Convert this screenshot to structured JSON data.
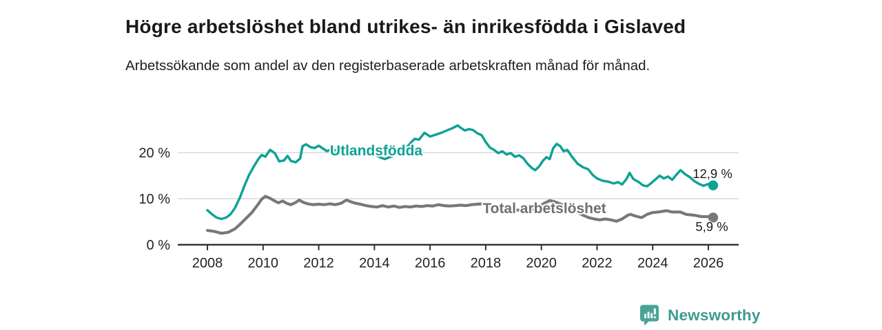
{
  "header": {
    "title": "Högre arbetslöshet bland utrikes- än inrikesfödda i Gislaved",
    "subtitle": "Arbetssökande som andel av den registerbaserade arbetskraften månad för månad."
  },
  "footer": {
    "brand": "Newsworthy"
  },
  "colors": {
    "accent_teal": "#0fa296",
    "series_gray": "#787878",
    "grid": "#d9d9d9",
    "axis": "#333333",
    "text_dark": "#1a1a1a",
    "logo_teal": "#4aa396"
  },
  "chart_data": {
    "type": "line",
    "title": "Högre arbetslöshet bland utrikes- än inrikesfödda i Gislaved",
    "subtitle": "Arbetssökande som andel av den registerbaserade arbetskraften månad för månad.",
    "unit": "%",
    "grid": "horizontal",
    "legend_position": "inline-labels",
    "x_axis": {
      "min": 2006.94,
      "max": 2027.09,
      "ticks": [
        2008,
        2010,
        2012,
        2014,
        2016,
        2018,
        2020,
        2022,
        2024,
        2026
      ]
    },
    "y_axis": {
      "min": 0,
      "max": 27,
      "ticks": [
        0,
        10,
        20
      ],
      "tick_labels": [
        "0 %",
        "10 %",
        "20 %"
      ]
    },
    "series": [
      {
        "name": "Utlandsfödda",
        "color": "#0fa296",
        "end_label": "12,9 %",
        "end_value": 12.9,
        "points": [
          [
            2008.0,
            7.5
          ],
          [
            2008.17,
            6.6
          ],
          [
            2008.33,
            5.9
          ],
          [
            2008.5,
            5.6
          ],
          [
            2008.67,
            5.9
          ],
          [
            2008.83,
            6.6
          ],
          [
            2009.0,
            8.1
          ],
          [
            2009.17,
            10.3
          ],
          [
            2009.33,
            12.8
          ],
          [
            2009.5,
            15.2
          ],
          [
            2009.67,
            17.0
          ],
          [
            2009.83,
            18.6
          ],
          [
            2009.95,
            19.5
          ],
          [
            2010.08,
            19.1
          ],
          [
            2010.25,
            20.6
          ],
          [
            2010.42,
            19.9
          ],
          [
            2010.58,
            18.1
          ],
          [
            2010.75,
            18.3
          ],
          [
            2010.88,
            19.3
          ],
          [
            2011.0,
            18.2
          ],
          [
            2011.17,
            17.9
          ],
          [
            2011.33,
            18.7
          ],
          [
            2011.42,
            21.4
          ],
          [
            2011.55,
            21.8
          ],
          [
            2011.7,
            21.2
          ],
          [
            2011.85,
            21.0
          ],
          [
            2012.0,
            21.5
          ],
          [
            2012.15,
            20.9
          ],
          [
            2012.3,
            20.3
          ],
          [
            2012.45,
            20.8
          ],
          [
            2012.6,
            20.5
          ],
          [
            2012.8,
            20.7
          ],
          [
            2013.0,
            21.0
          ],
          [
            2013.25,
            20.7
          ],
          [
            2013.5,
            20.4
          ],
          [
            2013.75,
            20.2
          ],
          [
            2014.0,
            19.7
          ],
          [
            2014.2,
            19.0
          ],
          [
            2014.37,
            18.6
          ],
          [
            2014.55,
            19.0
          ],
          [
            2014.75,
            19.6
          ],
          [
            2014.95,
            20.2
          ],
          [
            2015.15,
            21.0
          ],
          [
            2015.3,
            22.1
          ],
          [
            2015.45,
            23.0
          ],
          [
            2015.6,
            22.8
          ],
          [
            2015.8,
            24.3
          ],
          [
            2016.0,
            23.5
          ],
          [
            2016.2,
            23.9
          ],
          [
            2016.4,
            24.3
          ],
          [
            2016.6,
            24.8
          ],
          [
            2016.8,
            25.3
          ],
          [
            2017.0,
            25.9
          ],
          [
            2017.1,
            25.4
          ],
          [
            2017.25,
            24.8
          ],
          [
            2017.4,
            25.1
          ],
          [
            2017.55,
            24.9
          ],
          [
            2017.7,
            24.2
          ],
          [
            2017.85,
            23.8
          ],
          [
            2018.0,
            22.3
          ],
          [
            2018.15,
            21.1
          ],
          [
            2018.3,
            20.6
          ],
          [
            2018.45,
            19.9
          ],
          [
            2018.6,
            20.3
          ],
          [
            2018.75,
            19.6
          ],
          [
            2018.9,
            19.9
          ],
          [
            2019.05,
            19.1
          ],
          [
            2019.2,
            19.4
          ],
          [
            2019.35,
            18.8
          ],
          [
            2019.5,
            17.6
          ],
          [
            2019.65,
            16.7
          ],
          [
            2019.78,
            16.2
          ],
          [
            2019.92,
            17.0
          ],
          [
            2020.05,
            18.2
          ],
          [
            2020.18,
            19.0
          ],
          [
            2020.3,
            18.6
          ],
          [
            2020.42,
            20.9
          ],
          [
            2020.55,
            21.9
          ],
          [
            2020.68,
            21.4
          ],
          [
            2020.8,
            20.3
          ],
          [
            2020.93,
            20.6
          ],
          [
            2021.1,
            19.1
          ],
          [
            2021.3,
            17.6
          ],
          [
            2021.5,
            16.8
          ],
          [
            2021.68,
            16.4
          ],
          [
            2021.85,
            15.1
          ],
          [
            2022.0,
            14.4
          ],
          [
            2022.2,
            13.9
          ],
          [
            2022.4,
            13.7
          ],
          [
            2022.6,
            13.3
          ],
          [
            2022.75,
            13.6
          ],
          [
            2022.9,
            13.1
          ],
          [
            2023.05,
            14.2
          ],
          [
            2023.17,
            15.6
          ],
          [
            2023.3,
            14.3
          ],
          [
            2023.5,
            13.6
          ],
          [
            2023.65,
            12.9
          ],
          [
            2023.8,
            12.7
          ],
          [
            2023.95,
            13.4
          ],
          [
            2024.1,
            14.2
          ],
          [
            2024.25,
            15.0
          ],
          [
            2024.4,
            14.4
          ],
          [
            2024.55,
            14.8
          ],
          [
            2024.7,
            14.1
          ],
          [
            2024.85,
            15.2
          ],
          [
            2025.0,
            16.2
          ],
          [
            2025.17,
            15.3
          ],
          [
            2025.33,
            14.7
          ],
          [
            2025.5,
            13.8
          ],
          [
            2025.67,
            13.2
          ],
          [
            2025.83,
            12.8
          ],
          [
            2026.0,
            13.2
          ],
          [
            2026.17,
            12.9
          ]
        ]
      },
      {
        "name": "Total arbetslöshet",
        "color": "#787878",
        "end_label": "5,9 %",
        "end_value": 5.9,
        "points": [
          [
            2008.0,
            3.1
          ],
          [
            2008.25,
            2.9
          ],
          [
            2008.5,
            2.5
          ],
          [
            2008.75,
            2.7
          ],
          [
            2009.0,
            3.5
          ],
          [
            2009.2,
            4.6
          ],
          [
            2009.4,
            5.8
          ],
          [
            2009.6,
            7.0
          ],
          [
            2009.8,
            8.6
          ],
          [
            2009.95,
            9.9
          ],
          [
            2010.08,
            10.5
          ],
          [
            2010.25,
            10.1
          ],
          [
            2010.42,
            9.5
          ],
          [
            2010.55,
            9.1
          ],
          [
            2010.7,
            9.5
          ],
          [
            2010.85,
            9.0
          ],
          [
            2011.0,
            8.7
          ],
          [
            2011.15,
            9.1
          ],
          [
            2011.3,
            9.7
          ],
          [
            2011.45,
            9.2
          ],
          [
            2011.6,
            8.9
          ],
          [
            2011.8,
            8.7
          ],
          [
            2012.0,
            8.8
          ],
          [
            2012.2,
            8.7
          ],
          [
            2012.4,
            8.9
          ],
          [
            2012.6,
            8.7
          ],
          [
            2012.8,
            9.0
          ],
          [
            2013.0,
            9.7
          ],
          [
            2013.17,
            9.3
          ],
          [
            2013.33,
            9.0
          ],
          [
            2013.5,
            8.8
          ],
          [
            2013.7,
            8.5
          ],
          [
            2013.9,
            8.3
          ],
          [
            2014.1,
            8.2
          ],
          [
            2014.3,
            8.5
          ],
          [
            2014.5,
            8.2
          ],
          [
            2014.7,
            8.4
          ],
          [
            2014.9,
            8.1
          ],
          [
            2015.1,
            8.3
          ],
          [
            2015.3,
            8.2
          ],
          [
            2015.5,
            8.4
          ],
          [
            2015.7,
            8.3
          ],
          [
            2015.9,
            8.5
          ],
          [
            2016.1,
            8.4
          ],
          [
            2016.3,
            8.7
          ],
          [
            2016.5,
            8.5
          ],
          [
            2016.7,
            8.4
          ],
          [
            2016.9,
            8.5
          ],
          [
            2017.1,
            8.6
          ],
          [
            2017.3,
            8.5
          ],
          [
            2017.5,
            8.7
          ],
          [
            2017.7,
            8.8
          ],
          [
            2017.9,
            8.9
          ],
          [
            2018.1,
            8.5
          ],
          [
            2018.3,
            8.2
          ],
          [
            2018.6,
            7.9
          ],
          [
            2018.9,
            7.7
          ],
          [
            2019.2,
            7.5
          ],
          [
            2019.5,
            7.3
          ],
          [
            2019.8,
            7.8
          ],
          [
            2020.1,
            9.0
          ],
          [
            2020.3,
            9.6
          ],
          [
            2020.5,
            9.3
          ],
          [
            2020.75,
            8.7
          ],
          [
            2021.0,
            8.0
          ],
          [
            2021.25,
            7.2
          ],
          [
            2021.5,
            6.4
          ],
          [
            2021.7,
            5.9
          ],
          [
            2021.9,
            5.6
          ],
          [
            2022.1,
            5.4
          ],
          [
            2022.3,
            5.6
          ],
          [
            2022.5,
            5.4
          ],
          [
            2022.7,
            5.1
          ],
          [
            2022.9,
            5.6
          ],
          [
            2023.1,
            6.4
          ],
          [
            2023.2,
            6.6
          ],
          [
            2023.4,
            6.2
          ],
          [
            2023.6,
            5.9
          ],
          [
            2023.8,
            6.6
          ],
          [
            2024.0,
            7.0
          ],
          [
            2024.2,
            7.1
          ],
          [
            2024.5,
            7.4
          ],
          [
            2024.7,
            7.1
          ],
          [
            2025.0,
            7.1
          ],
          [
            2025.2,
            6.6
          ],
          [
            2025.5,
            6.4
          ],
          [
            2025.75,
            6.1
          ],
          [
            2026.0,
            6.1
          ],
          [
            2026.17,
            5.9
          ]
        ]
      }
    ]
  }
}
